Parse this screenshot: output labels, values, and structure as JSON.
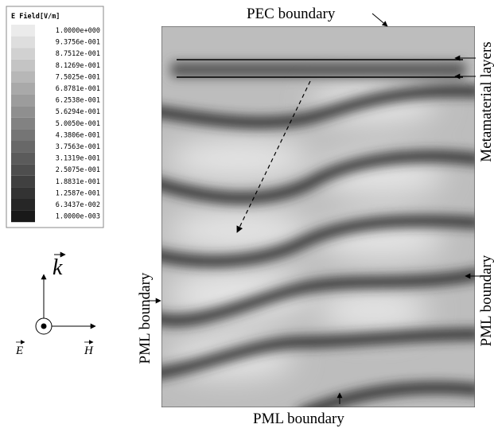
{
  "legend": {
    "title": "E Field[V/m]",
    "labels": [
      "1.0000e+000",
      "9.3756e-001",
      "8.7512e-001",
      "8.1269e-001",
      "7.5025e-001",
      "6.8781e-001",
      "6.2538e-001",
      "5.6294e-001",
      "5.0050e-001",
      "4.3806e-001",
      "3.7563e-001",
      "3.1319e-001",
      "2.5075e-001",
      "1.8831e-001",
      "1.2587e-001",
      "6.3437e-002",
      "1.0000e-003"
    ]
  },
  "labels": {
    "top": "PEC boundary",
    "metamaterial": "Metamaterial layers",
    "left": "PML boundary",
    "right": "PML boundary",
    "bottom": "PML boundary"
  },
  "axes": {
    "k": "k",
    "E": "E",
    "H": "H"
  }
}
